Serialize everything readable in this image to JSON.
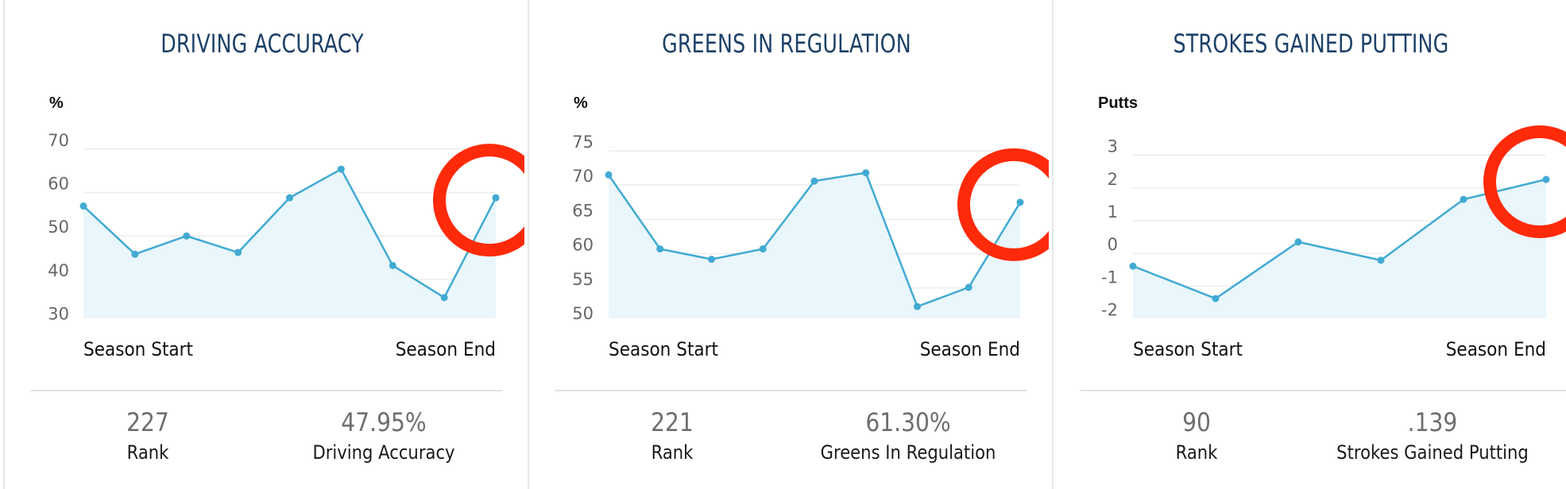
{
  "panels": [
    {
      "title": "DRIVING ACCURACY",
      "unit_label": "%",
      "x_start_label": "Season Start",
      "x_end_label": "Season End",
      "rank_value": "227",
      "rank_label": "Rank",
      "stat_value": "47.95%",
      "stat_label": "Driving Accuracy"
    },
    {
      "title": "GREENS IN REGULATION",
      "unit_label": "%",
      "x_start_label": "Season Start",
      "x_end_label": "Season End",
      "rank_value": "221",
      "rank_label": "Rank",
      "stat_value": "61.30%",
      "stat_label": "Greens In Regulation"
    },
    {
      "title": "STROKES GAINED PUTTING",
      "unit_label": "Putts",
      "x_start_label": "Season Start",
      "x_end_label": "Season End",
      "rank_value": "90",
      "rank_label": "Rank",
      "stat_value": ".139",
      "stat_label": "Strokes Gained Putting"
    }
  ],
  "colors": {
    "line": "#41aad2",
    "area_fill": "#e9f6fc",
    "highlight_circle": "#ff2a0a",
    "title": "#1d4168",
    "grid": "#ececec",
    "tick_text": "#666666"
  },
  "chart_data": [
    {
      "type": "area",
      "title": "DRIVING ACCURACY",
      "ylabel": "%",
      "y_ticks": [
        30,
        40,
        50,
        60,
        70
      ],
      "ylim": [
        29,
        72
      ],
      "x_labels": [
        "Season Start",
        "Season End"
      ],
      "series": [
        {
          "values": [
            54.7,
            43.6,
            47.8,
            44.0,
            56.6,
            63.2,
            41.0,
            33.6,
            56.6
          ]
        }
      ],
      "highlight_point_index": 8
    },
    {
      "type": "area",
      "title": "GREENS IN REGULATION",
      "ylabel": "%",
      "y_ticks": [
        50,
        55,
        60,
        65,
        70,
        75
      ],
      "ylim": [
        49.3,
        76.5
      ],
      "x_labels": [
        "Season Start",
        "Season End"
      ],
      "series": [
        {
          "values": [
            70.1,
            59.3,
            57.8,
            59.3,
            69.2,
            70.4,
            50.9,
            53.7,
            66.1
          ]
        }
      ],
      "highlight_point_index": 8
    },
    {
      "type": "area",
      "title": "STROKES GAINED PUTTING",
      "ylabel": "Putts",
      "y_ticks": [
        -2,
        -1,
        0,
        1,
        2,
        3
      ],
      "ylim": [
        -2.25,
        3.45
      ],
      "x_labels": [
        "Season Start",
        "Season End"
      ],
      "series": [
        {
          "values": [
            -0.68,
            -1.67,
            0.06,
            -0.5,
            1.36,
            1.97
          ]
        }
      ],
      "highlight_point_index": 5
    }
  ]
}
